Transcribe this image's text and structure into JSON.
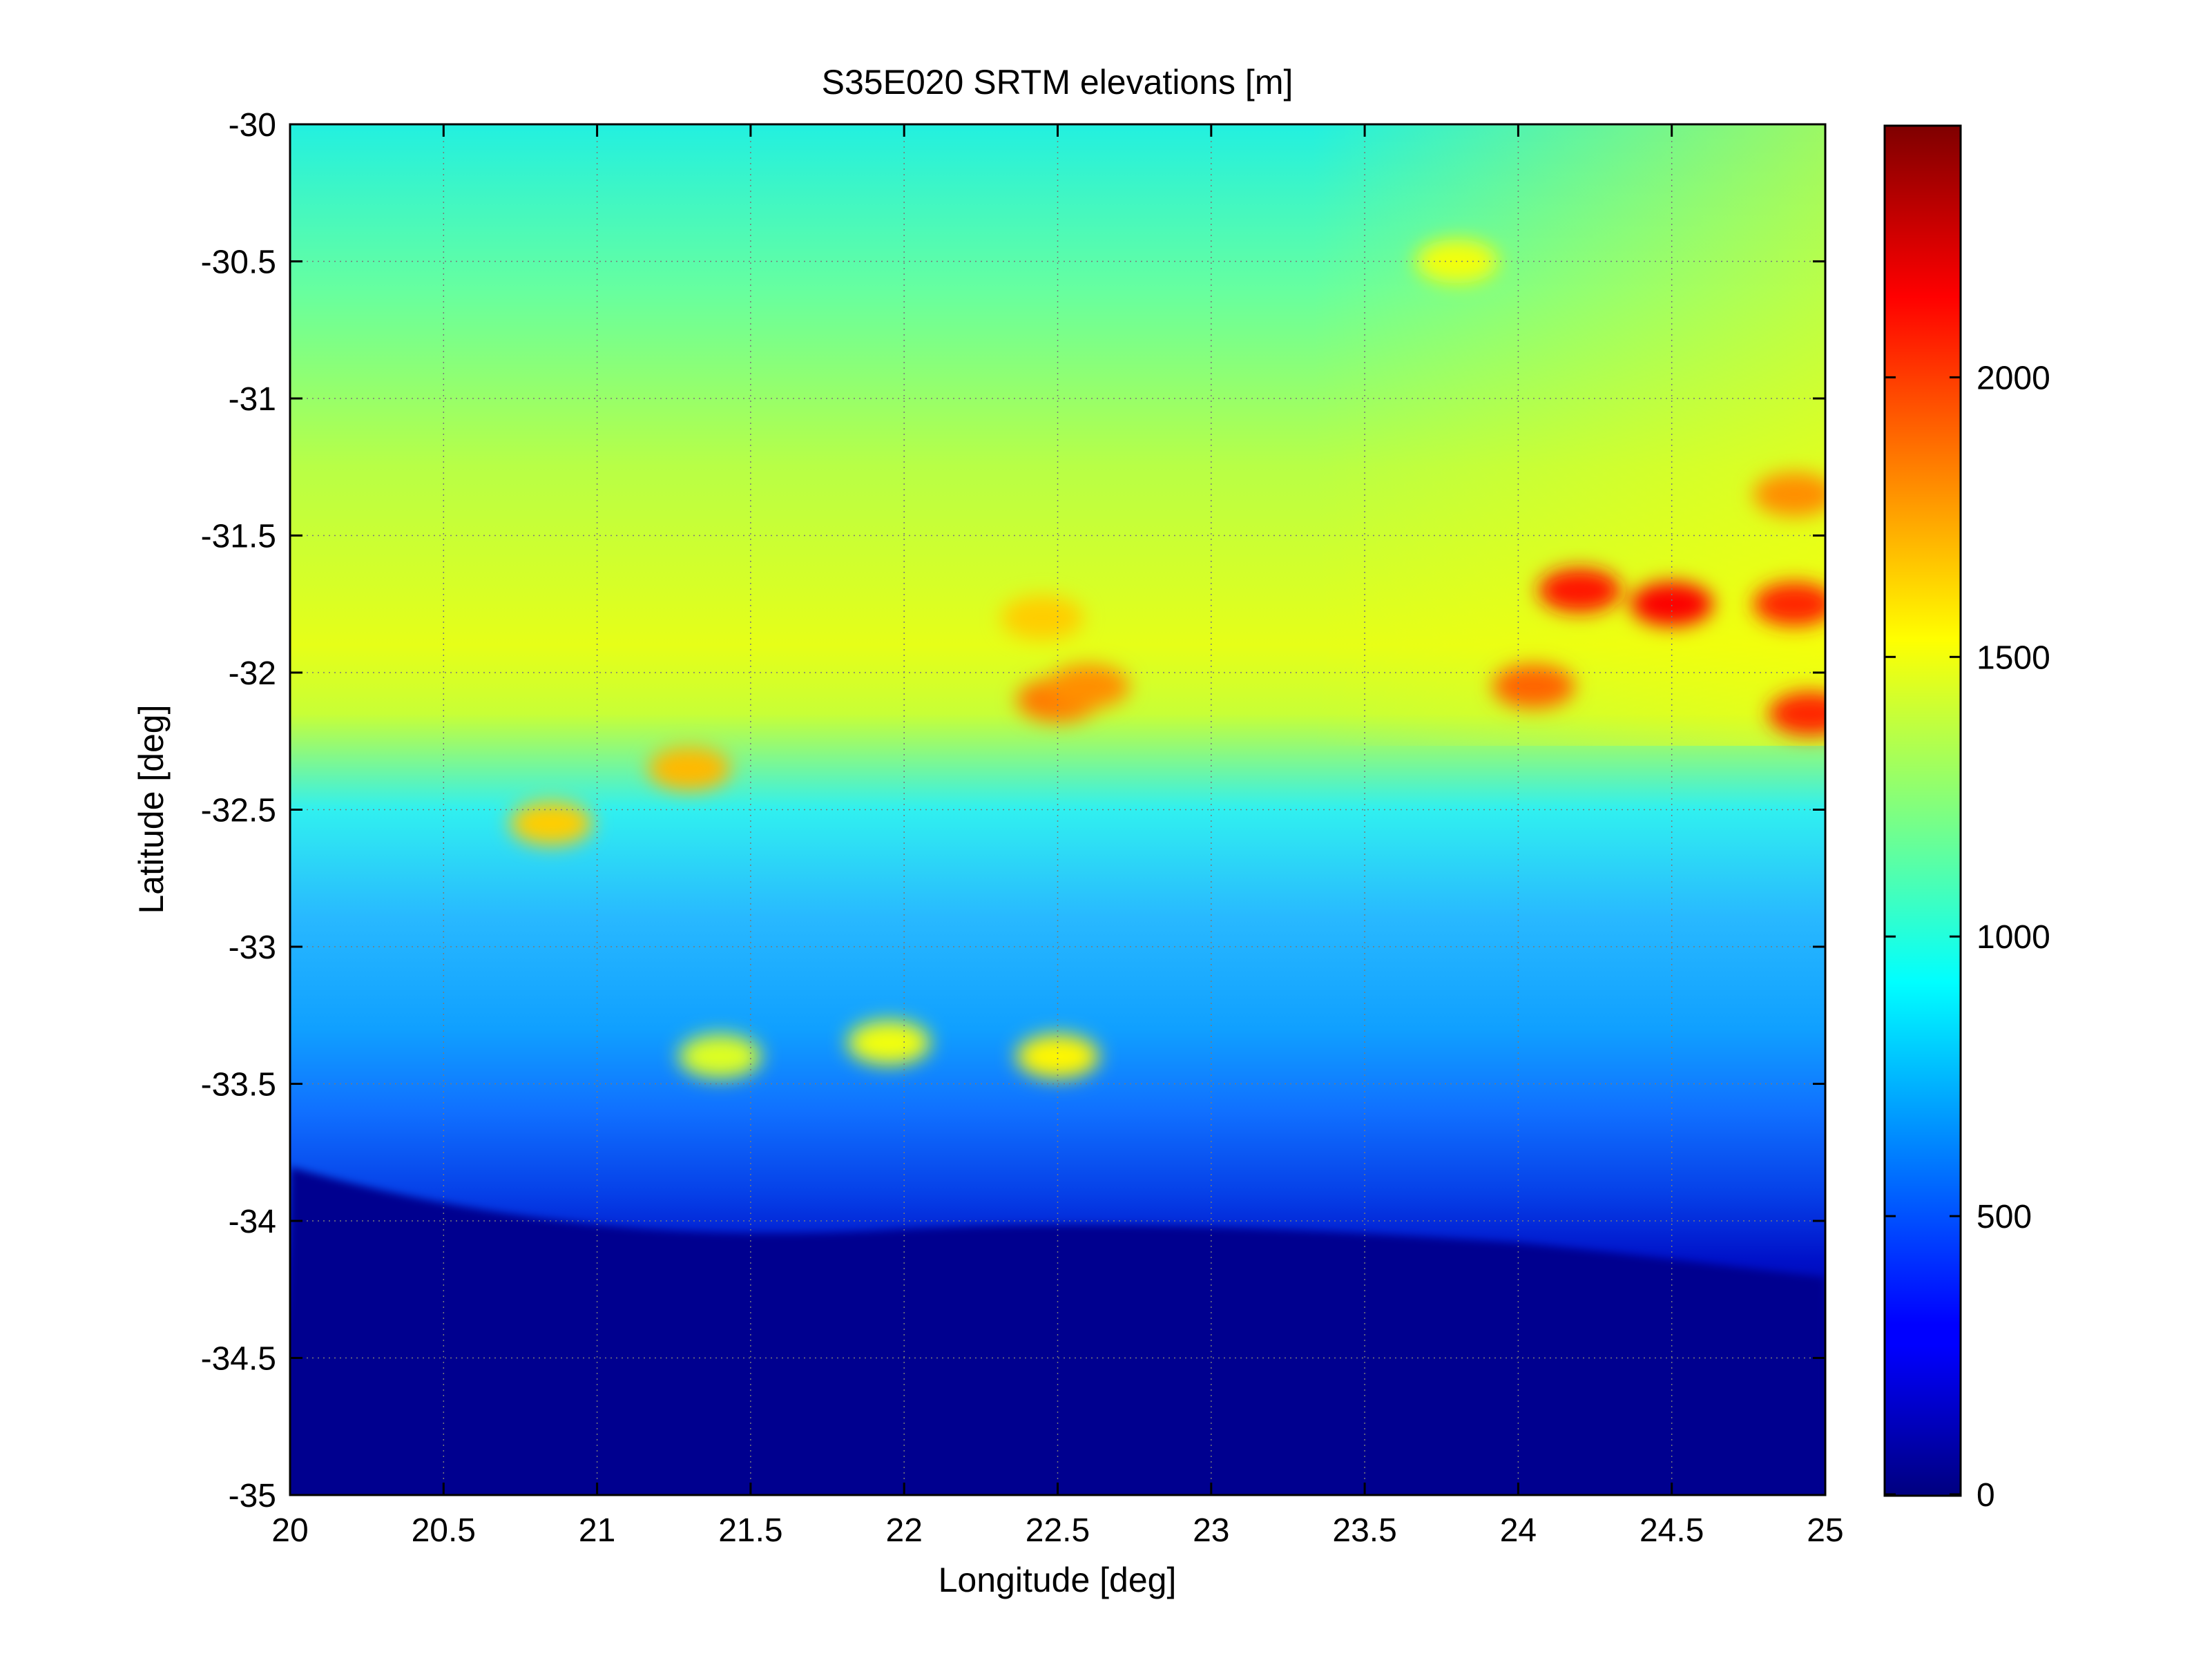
{
  "chart_data": {
    "type": "heatmap",
    "title": "S35E020 SRTM elevations [m]",
    "xlabel": "Longitude [deg]",
    "ylabel": "Latitude [deg]",
    "xlim": [
      20,
      25
    ],
    "ylim": [
      -35,
      -30
    ],
    "xticks": [
      20,
      20.5,
      21,
      21.5,
      22,
      22.5,
      23,
      23.5,
      24,
      24.5,
      25
    ],
    "xtick_labels": [
      "20",
      "20.5",
      "21",
      "21.5",
      "22",
      "22.5",
      "23",
      "23.5",
      "24",
      "24.5",
      "25"
    ],
    "yticks": [
      -30,
      -30.5,
      -31,
      -31.5,
      -32,
      -32.5,
      -33,
      -33.5,
      -34,
      -34.5,
      -35
    ],
    "ytick_labels": [
      "-30",
      "-30.5",
      "-31",
      "-31.5",
      "-32",
      "-32.5",
      "-33",
      "-33.5",
      "-34",
      "-34.5",
      "-35"
    ],
    "grid": true,
    "colormap": "jet",
    "colorbar": {
      "clim": [
        0,
        2450
      ],
      "ticks": [
        0,
        500,
        1000,
        1500,
        2000
      ],
      "tick_labels": [
        "0",
        "500",
        "1000",
        "1500",
        "2000"
      ]
    },
    "elevation_features": [
      {
        "lon": 22.5,
        "lat": -32.1,
        "elevation": 1850
      },
      {
        "lon": 22.6,
        "lat": -32.05,
        "elevation": 1800
      },
      {
        "lon": 24.2,
        "lat": -31.7,
        "elevation": 2100
      },
      {
        "lon": 24.5,
        "lat": -31.75,
        "elevation": 2150
      },
      {
        "lon": 24.9,
        "lat": -31.75,
        "elevation": 2050
      },
      {
        "lon": 24.95,
        "lat": -32.15,
        "elevation": 2050
      },
      {
        "lon": 24.05,
        "lat": -32.05,
        "elevation": 1900
      },
      {
        "lon": 24.9,
        "lat": -31.35,
        "elevation": 1800
      },
      {
        "lon": 20.85,
        "lat": -32.55,
        "elevation": 1650
      },
      {
        "lon": 21.3,
        "lat": -32.35,
        "elevation": 1700
      },
      {
        "lon": 22.45,
        "lat": -31.8,
        "elevation": 1650
      },
      {
        "lon": 21.95,
        "lat": -33.35,
        "elevation": 1500
      },
      {
        "lon": 22.5,
        "lat": -33.4,
        "elevation": 1550
      },
      {
        "lon": 21.4,
        "lat": -33.4,
        "elevation": 1450
      },
      {
        "lon": 23.8,
        "lat": -30.5,
        "elevation": 1500
      }
    ]
  }
}
